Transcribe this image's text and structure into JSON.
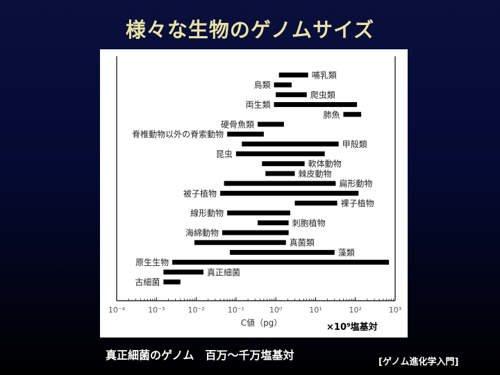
{
  "slide": {
    "title": "様々な生物のゲノムサイズ",
    "caption": "真正細菌のゲノム　百万～千万塩基対",
    "source": "[ゲノム進化学入門]"
  },
  "chart_data": {
    "type": "bar",
    "orientation": "horizontal-range",
    "scale": "log10",
    "xlabel": "C値（pg）",
    "unit_note": "×10⁹塩基対",
    "xlim_exp": [
      -4,
      3
    ],
    "x_ticks": [
      "10⁻⁴",
      "10⁻³",
      "10⁻²",
      "10⁻¹",
      "10⁰",
      "10¹",
      "10²",
      "10³"
    ],
    "bar_color": "#000000",
    "grid": false,
    "series": [
      {
        "label": "哺乳類",
        "label_side": "right",
        "min": 1.2,
        "max": 6.5
      },
      {
        "label": "鳥類",
        "label_side": "left",
        "min": 0.9,
        "max": 2.5
      },
      {
        "label": "爬虫類",
        "label_side": "right",
        "min": 1.0,
        "max": 6.0
      },
      {
        "label": "両生類",
        "label_side": "left",
        "min": 0.9,
        "max": 110
      },
      {
        "label": "肺魚",
        "label_side": "left",
        "min": 50,
        "max": 140
      },
      {
        "label": "硬骨魚類",
        "label_side": "left",
        "min": 0.35,
        "max": 1.6
      },
      {
        "label": "脊椎動物以外の脊索動物",
        "label_side": "left",
        "min": 0.06,
        "max": 0.5
      },
      {
        "label": "甲殻類",
        "label_side": "right",
        "min": 0.14,
        "max": 38
      },
      {
        "label": "昆虫",
        "label_side": "left",
        "min": 0.1,
        "max": 17
      },
      {
        "label": "軟体動物",
        "label_side": "right",
        "min": 0.45,
        "max": 5.3
      },
      {
        "label": "棘皮動物",
        "label_side": "right",
        "min": 0.55,
        "max": 3.0
      },
      {
        "label": "扁形動物",
        "label_side": "right",
        "min": 0.05,
        "max": 32
      },
      {
        "label": "被子植物",
        "label_side": "left",
        "min": 0.04,
        "max": 120
      },
      {
        "label": "裸子植物",
        "label_side": "right",
        "min": 3.0,
        "max": 35
      },
      {
        "label": "線形動物",
        "label_side": "left",
        "min": 0.06,
        "max": 2.3
      },
      {
        "label": "刺胞植物",
        "label_side": "right",
        "min": 0.35,
        "max": 2.1
      },
      {
        "label": "海綿動物",
        "label_side": "left",
        "min": 0.045,
        "max": 2.1
      },
      {
        "label": "真菌類",
        "label_side": "right",
        "min": 0.009,
        "max": 1.8
      },
      {
        "label": "藻類",
        "label_side": "right",
        "min": 0.07,
        "max": 30
      },
      {
        "label": "原生生物",
        "label_side": "left",
        "min": 0.0025,
        "max": 700
      },
      {
        "label": "真正細菌",
        "label_side": "right",
        "min": 0.0015,
        "max": 0.0152
      },
      {
        "label": "古細菌",
        "label_side": "left",
        "min": 0.0015,
        "max": 0.004
      }
    ]
  }
}
